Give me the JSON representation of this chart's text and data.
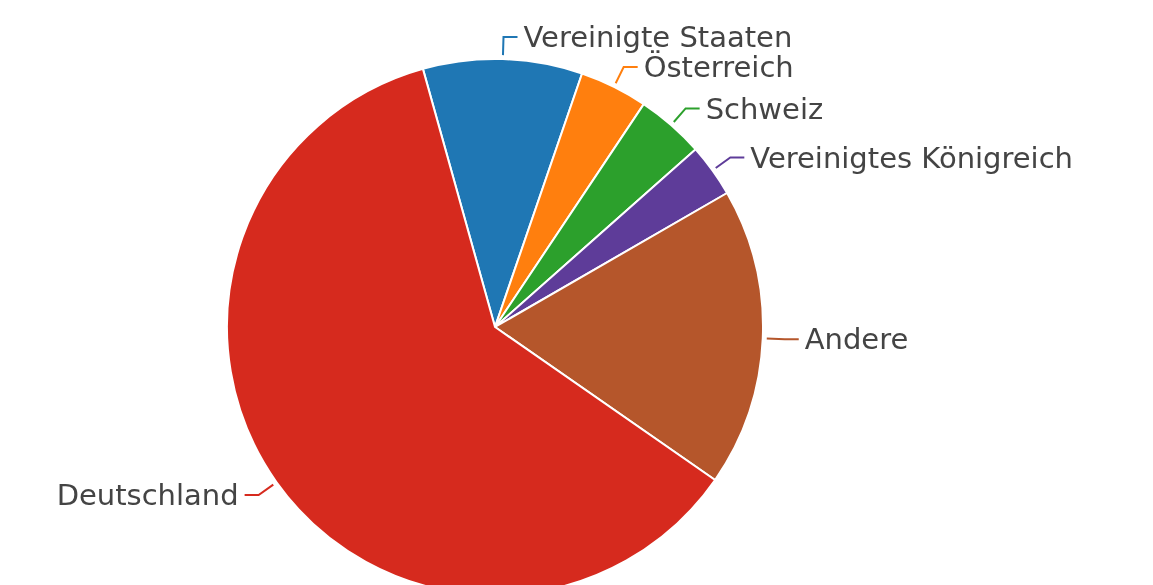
{
  "chart_data": {
    "type": "pie",
    "categories": [
      "Vereinigte Staaten",
      "Österreich",
      "Schweiz",
      "Vereinigtes Königreich",
      "Andere",
      "Deutschland"
    ],
    "values": [
      9.6,
      4.1,
      4.1,
      3.2,
      18.0,
      61.0
    ],
    "colors": [
      "#1f77b4",
      "#ff7f0e",
      "#2ca02c",
      "#5e3c99",
      "#b5562b",
      "#d62a1e"
    ],
    "legend": false
  }
}
